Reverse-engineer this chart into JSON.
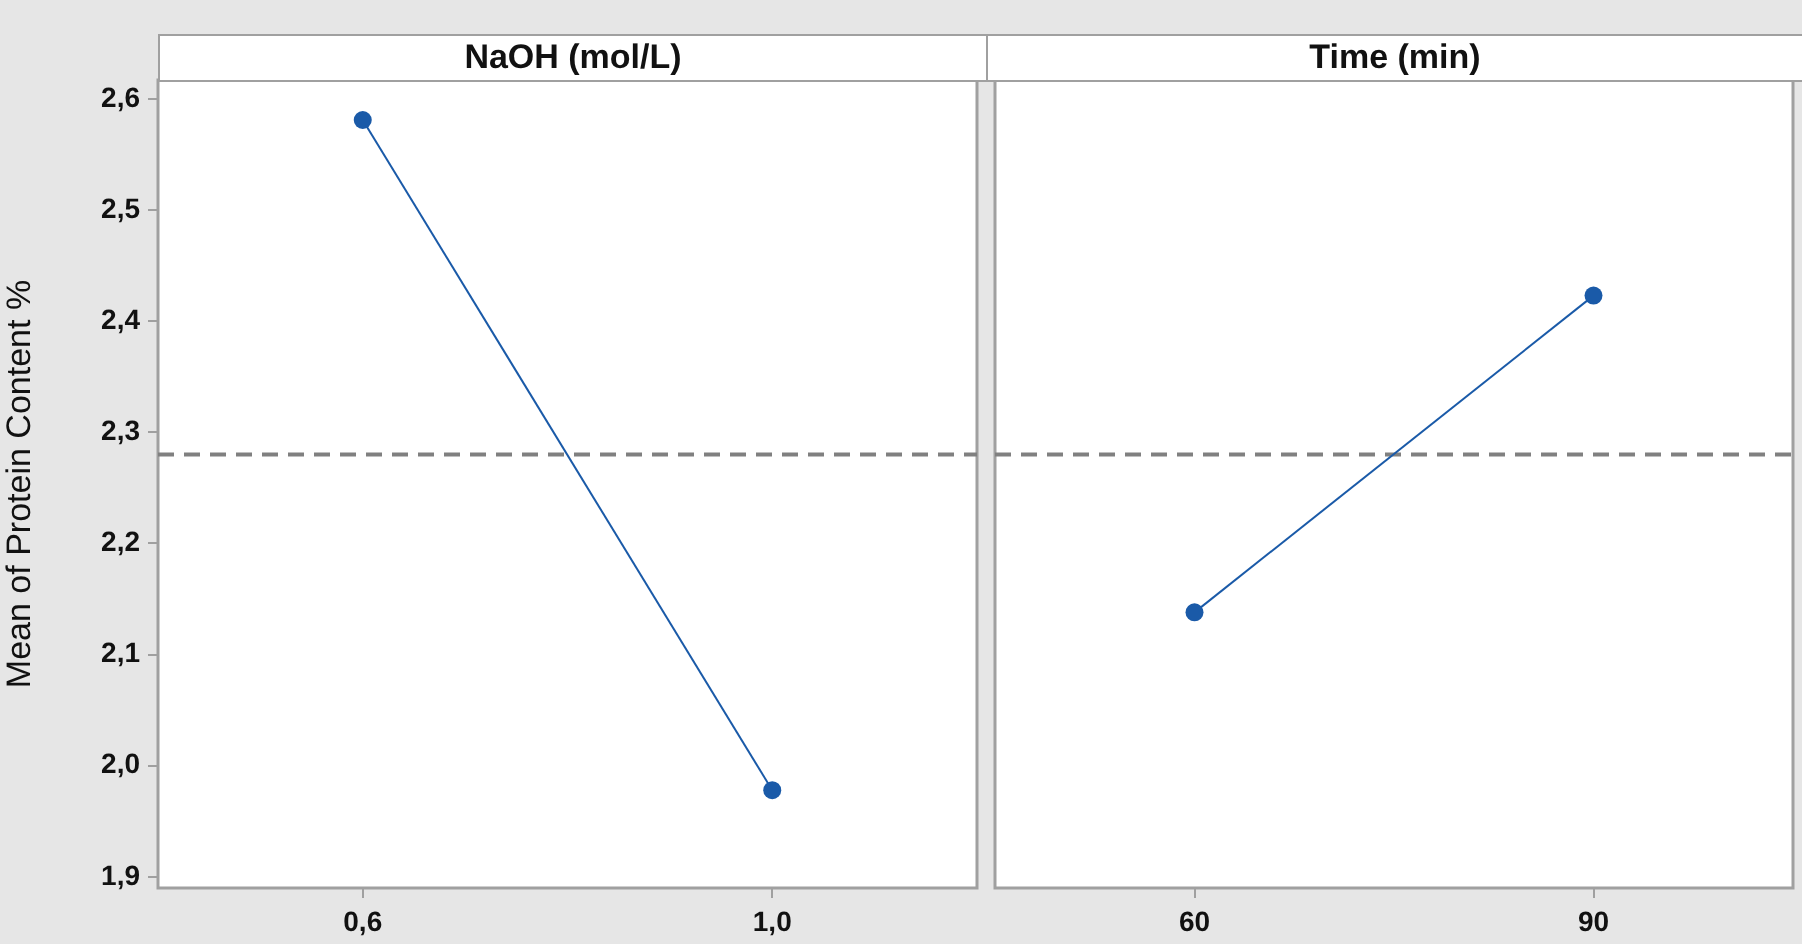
{
  "chart_data": [
    {
      "type": "line",
      "title": "NaOH (mol/L)",
      "ylabel": "Mean of Protein Content %",
      "categories": [
        "0,6",
        "1,0"
      ],
      "values": [
        2.581,
        1.978
      ],
      "color": "#1a5aa8",
      "marker": "circle",
      "ylim": [
        1.89,
        2.617
      ],
      "yticks": [
        {
          "value": 1.9,
          "label": "1,9"
        },
        {
          "value": 2.0,
          "label": "2,0"
        },
        {
          "value": 2.1,
          "label": "2,1"
        },
        {
          "value": 2.2,
          "label": "2,2"
        },
        {
          "value": 2.3,
          "label": "2,3"
        },
        {
          "value": 2.4,
          "label": "2,4"
        },
        {
          "value": 2.5,
          "label": "2,5"
        },
        {
          "value": 2.6,
          "label": "2,6"
        }
      ],
      "ref_lines": [
        {
          "axis": "y",
          "value": 2.28,
          "color": "#808080",
          "line_style": "dashed"
        }
      ]
    },
    {
      "type": "line",
      "title": "Time (min)",
      "categories": [
        "60",
        "90"
      ],
      "values": [
        2.138,
        2.423
      ],
      "color": "#1a5aa8",
      "marker": "circle",
      "ylim": [
        1.89,
        2.617
      ],
      "tick_labels": "x",
      "ref_lines": [
        {
          "axis": "y",
          "value": 2.28,
          "color": "#808080",
          "line_style": "dashed"
        }
      ]
    }
  ]
}
